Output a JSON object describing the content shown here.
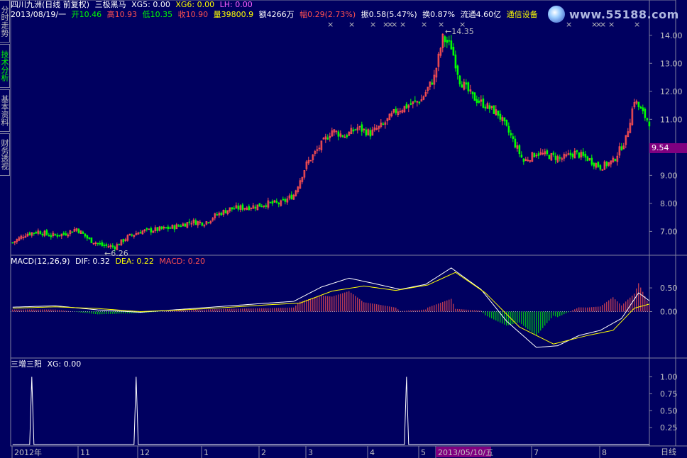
{
  "side_tabs": [
    {
      "label": "分时走势",
      "active": false
    },
    {
      "label": "技术分析",
      "active": true
    },
    {
      "label": "基本资料",
      "active": false
    },
    {
      "label": "财务透视",
      "active": false
    }
  ],
  "watermark": "www.55188.com",
  "header": {
    "title": "四川九洲(日线 前复权)",
    "indicator": "三极黑马",
    "xg5": "XG5: 0.00",
    "xg6": "XG6: 0.00",
    "lh": "LH: 0.00",
    "date": "2013/08/19/一",
    "open": "开10.46",
    "high": "高10.93",
    "low": "低10.35",
    "close": "收10.90",
    "volume": "量39800.9",
    "amount": "额4266万",
    "change": "幅0.29(2.73%)",
    "amplitude": "振0.58(5.47%)",
    "turnover": "换0.87%",
    "float": "流通4.60亿",
    "sector": "通信设备"
  },
  "macd_header": {
    "name": "MACD(12,26,9)",
    "dif": "DIF: 0.32",
    "dea": "DEA: 0.22",
    "macd": "MACD: 0.20"
  },
  "sub_header": {
    "name": "三增三阳",
    "xg": "XG: 0.00"
  },
  "current_price_tag": "9.54",
  "period_tab": "日线",
  "colors": {
    "background": "#000060",
    "up": "#ff5050",
    "down": "#00ff00",
    "dif": "#ffffff",
    "dea": "#ffff00",
    "axis": "#8080a0"
  },
  "chart_data": [
    {
      "type": "candlestick",
      "name": "price",
      "ylim": [
        6.2,
        14.5
      ],
      "y_ticks": [
        "7.00",
        "8.00",
        "9.00",
        "10.00",
        "11.00",
        "12.00",
        "13.00",
        "14.00"
      ],
      "annotations": [
        {
          "text": "6.26",
          "kind": "low"
        },
        {
          "text": "14.35",
          "kind": "high"
        }
      ],
      "anchors": [
        [
          0,
          6.6
        ],
        [
          6,
          6.9
        ],
        [
          12,
          7.0
        ],
        [
          18,
          6.85
        ],
        [
          24,
          6.9
        ],
        [
          30,
          7.1
        ],
        [
          36,
          6.7
        ],
        [
          42,
          6.5
        ],
        [
          48,
          6.45
        ],
        [
          54,
          6.8
        ],
        [
          60,
          7.0
        ],
        [
          66,
          7.05
        ],
        [
          72,
          7.1
        ],
        [
          78,
          7.2
        ],
        [
          84,
          7.35
        ],
        [
          90,
          7.3
        ],
        [
          96,
          7.6
        ],
        [
          102,
          7.8
        ],
        [
          108,
          7.85
        ],
        [
          114,
          7.9
        ],
        [
          120,
          8.0
        ],
        [
          126,
          8.0
        ],
        [
          132,
          8.3
        ],
        [
          138,
          9.4
        ],
        [
          144,
          10.0
        ],
        [
          150,
          10.6
        ],
        [
          156,
          10.4
        ],
        [
          162,
          10.7
        ],
        [
          168,
          10.5
        ],
        [
          174,
          10.8
        ],
        [
          180,
          11.3
        ],
        [
          186,
          11.5
        ],
        [
          192,
          11.7
        ],
        [
          198,
          12.5
        ],
        [
          202,
          13.9
        ],
        [
          206,
          13.6
        ],
        [
          210,
          12.4
        ],
        [
          216,
          11.8
        ],
        [
          222,
          11.5
        ],
        [
          228,
          11.2
        ],
        [
          234,
          10.4
        ],
        [
          240,
          9.5
        ],
        [
          246,
          9.8
        ],
        [
          252,
          9.7
        ],
        [
          258,
          9.6
        ],
        [
          264,
          9.8
        ],
        [
          270,
          9.6
        ],
        [
          276,
          9.3
        ],
        [
          282,
          9.5
        ],
        [
          288,
          10.3
        ],
        [
          292,
          11.7
        ],
        [
          296,
          11.2
        ],
        [
          299,
          10.9
        ]
      ]
    },
    {
      "type": "bar+line",
      "name": "MACD",
      "ylim": [
        -0.95,
        0.95
      ],
      "y_ticks": [
        "0.50",
        "0.00"
      ],
      "series": [
        {
          "name": "DIF",
          "anchors": [
            [
              0,
              0.13
            ],
            [
              20,
              0.17
            ],
            [
              40,
              0.05
            ],
            [
              60,
              -0.02
            ],
            [
              80,
              0.07
            ],
            [
              100,
              0.16
            ],
            [
              120,
              0.25
            ],
            [
              132,
              0.3
            ],
            [
              145,
              0.72
            ],
            [
              158,
              0.98
            ],
            [
              170,
              0.82
            ],
            [
              182,
              0.65
            ],
            [
              194,
              0.8
            ],
            [
              206,
              1.28
            ],
            [
              220,
              0.65
            ],
            [
              232,
              -0.28
            ],
            [
              246,
              -1.05
            ],
            [
              256,
              -1.0
            ],
            [
              266,
              -0.7
            ],
            [
              276,
              -0.55
            ],
            [
              286,
              -0.2
            ],
            [
              294,
              0.55
            ],
            [
              299,
              0.32
            ]
          ]
        },
        {
          "name": "DEA",
          "anchors": [
            [
              0,
              0.1
            ],
            [
              20,
              0.14
            ],
            [
              40,
              0.09
            ],
            [
              60,
              0.0
            ],
            [
              80,
              0.05
            ],
            [
              100,
              0.12
            ],
            [
              120,
              0.2
            ],
            [
              135,
              0.25
            ],
            [
              150,
              0.6
            ],
            [
              165,
              0.75
            ],
            [
              180,
              0.62
            ],
            [
              195,
              0.78
            ],
            [
              208,
              1.15
            ],
            [
              222,
              0.55
            ],
            [
              238,
              -0.45
            ],
            [
              254,
              -0.95
            ],
            [
              270,
              -0.7
            ],
            [
              282,
              -0.55
            ],
            [
              292,
              0.1
            ],
            [
              299,
              0.22
            ]
          ]
        }
      ]
    },
    {
      "type": "line",
      "name": "XG",
      "ylim": [
        0,
        1.1
      ],
      "y_ticks": [
        "1.00",
        "0.75",
        "0.50",
        "0.25"
      ],
      "spikes": [
        9,
        58,
        185
      ]
    }
  ],
  "x_axis": {
    "labels": [
      {
        "text": "2012年",
        "index": 0
      },
      {
        "text": "11",
        "index": 31
      },
      {
        "text": "12",
        "index": 59
      },
      {
        "text": "1",
        "index": 89
      },
      {
        "text": "2",
        "index": 116
      },
      {
        "text": "3",
        "index": 138
      },
      {
        "text": "4",
        "index": 167
      },
      {
        "text": "5",
        "index": 191
      },
      {
        "text": "2013/05/10/五",
        "index": 199,
        "highlight": true
      },
      {
        "text": "7",
        "index": 244
      },
      {
        "text": "8",
        "index": 276
      }
    ],
    "count": 300
  }
}
